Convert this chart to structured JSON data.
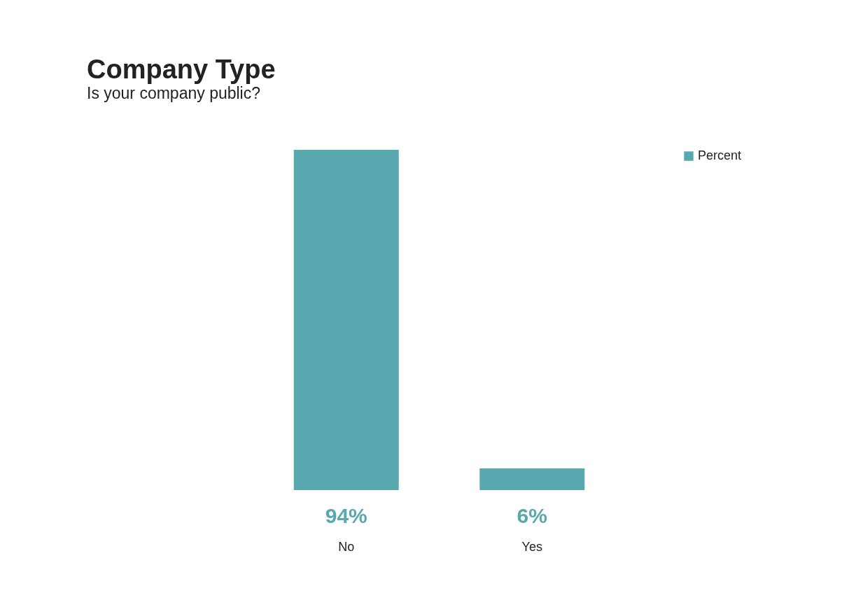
{
  "chart_data": {
    "type": "bar",
    "title": "Company Type",
    "subtitle": "Is your company public?",
    "categories": [
      "No",
      "Yes"
    ],
    "series": [
      {
        "name": "Percent",
        "color": "#59a8b0",
        "values": [
          94,
          6
        ],
        "value_labels": [
          "94%",
          "6%"
        ]
      }
    ],
    "tick_labels": "x",
    "legend": "right",
    "grid": false
  }
}
